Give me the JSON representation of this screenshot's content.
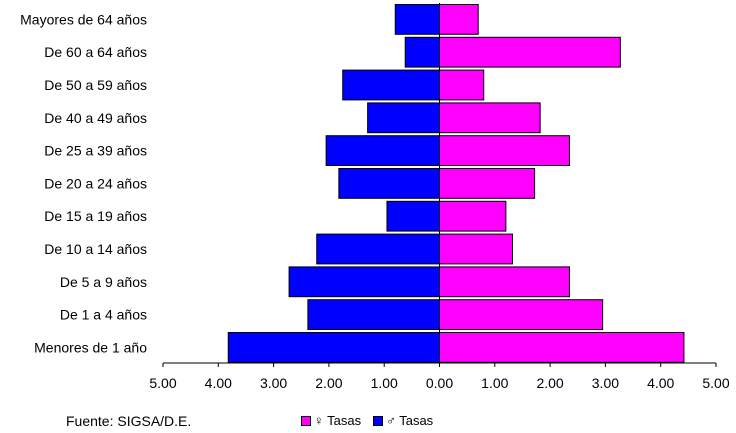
{
  "chart_data": {
    "type": "bar",
    "orientation": "horizontal",
    "layout": "population-pyramid",
    "categories": [
      "Mayores de 64 años",
      "De 60 a 64 años",
      "De 50 a 59 años",
      "De 40 a 49 años",
      "De 25 a 39 años",
      "De 20 a 24 años",
      "De 15 a 19 años",
      "De 10 a 14 años",
      "De 5 a 9 años",
      "De 1 a 4 años",
      "Menores de 1 año"
    ],
    "series": [
      {
        "name": "♀ Tasas",
        "side": "right",
        "color": "#FF00FF",
        "values": [
          0.7,
          3.27,
          0.8,
          1.82,
          2.35,
          1.72,
          1.2,
          1.32,
          2.35,
          2.95,
          4.42
        ]
      },
      {
        "name": "♂ Tasas",
        "side": "left",
        "color": "#0000FF",
        "values": [
          0.8,
          0.62,
          1.75,
          1.3,
          2.05,
          1.82,
          0.95,
          2.22,
          2.72,
          2.38,
          3.82
        ]
      }
    ],
    "xlim": [
      -5,
      5
    ],
    "xticks": [
      "5.00",
      "4.00",
      "3.00",
      "2.00",
      "1.00",
      "0.00",
      "1.00",
      "2.00",
      "3.00",
      "4.00",
      "5.00"
    ],
    "grid": false,
    "legend_position": "bottom"
  },
  "source": "Fuente: SIGSA/D.E.",
  "legend": [
    {
      "label": "♀ Tasas",
      "color": "#FF00FF"
    },
    {
      "label": "♂ Tasas",
      "color": "#0000FF"
    }
  ]
}
